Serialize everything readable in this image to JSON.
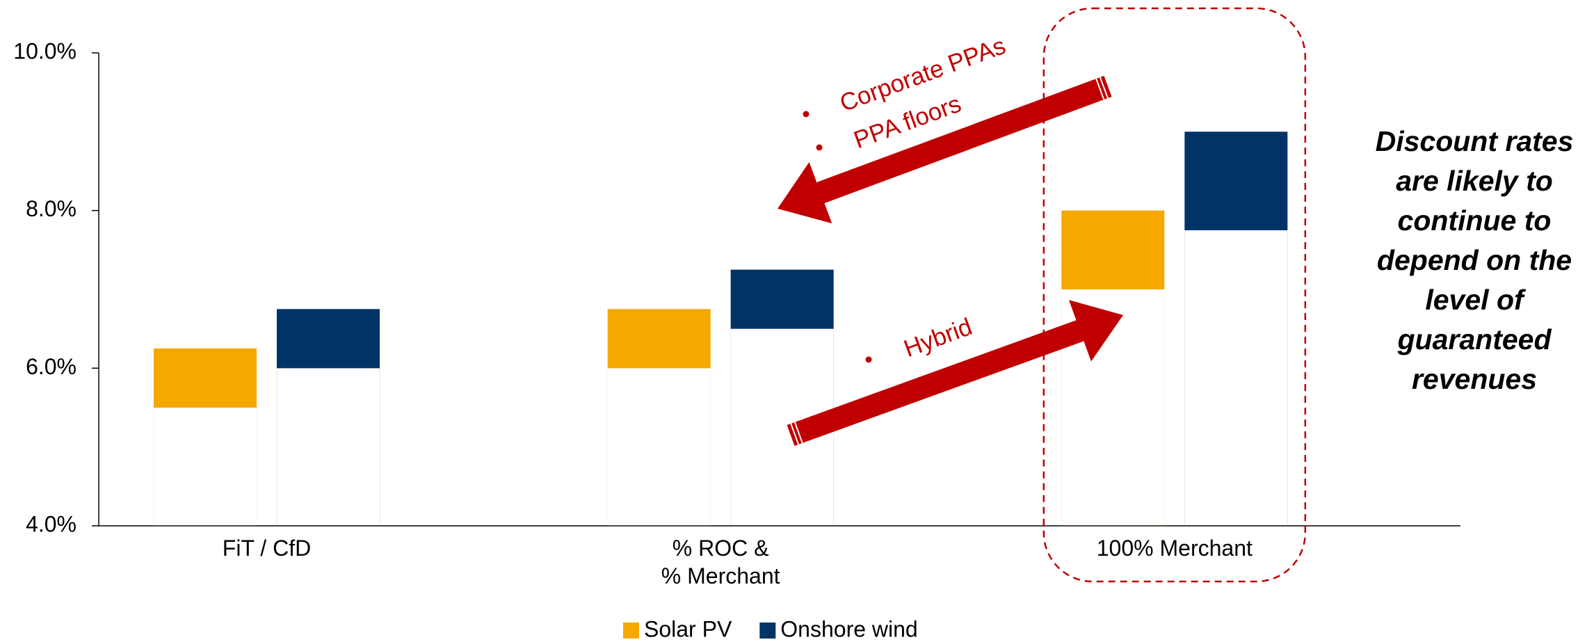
{
  "chart_data": {
    "type": "floating-bar",
    "categories": [
      "FiT / CfD",
      "% ROC &\n% Merchant",
      "100% Merchant"
    ],
    "series": [
      {
        "name": "Solar PV",
        "color": "#f5a800",
        "low": [
          5.5,
          6.0,
          7.0
        ],
        "high": [
          6.25,
          6.75,
          8.0
        ]
      },
      {
        "name": "Onshore wind",
        "color": "#003366",
        "low": [
          6.0,
          6.5,
          7.75
        ],
        "high": [
          6.75,
          7.25,
          9.0
        ]
      }
    ],
    "ylim": [
      4,
      10
    ],
    "yticks": [
      {
        "value": 4,
        "label": "4.0%"
      },
      {
        "value": 6,
        "label": "6.0%"
      },
      {
        "value": 8,
        "label": "8.0%"
      },
      {
        "value": 10,
        "label": "10.0%"
      }
    ],
    "annotations": [
      "Corporate PPAs",
      "PPA floors",
      "Hybrid",
      "Discount rates are likely to continue to depend on the level of guaranteed revenues"
    ],
    "legend": "bottom"
  }
}
